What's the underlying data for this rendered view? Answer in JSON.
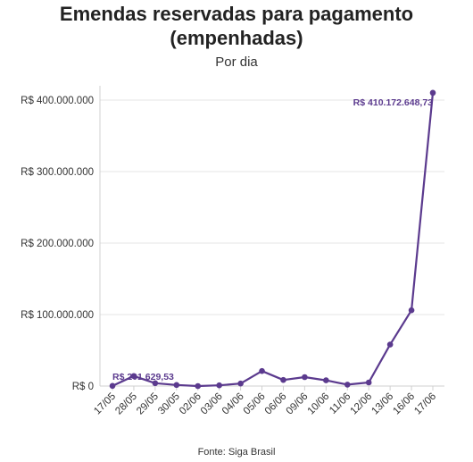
{
  "title_line1": "Emendas reservadas para pagamento",
  "title_line2": "(empenhadas)",
  "subtitle": "Por dia",
  "source": "Fonte: Siga Brasil",
  "colors": {
    "series": "#5b3a8e",
    "grid": "#e6e6e6",
    "axis": "#d0d0d0",
    "text": "#333333"
  },
  "chart_data": {
    "type": "line",
    "title": "Emendas reservadas para pagamento (empenhadas)",
    "subtitle": "Por dia",
    "xlabel": "",
    "ylabel": "",
    "categories": [
      "17/05",
      "28/05",
      "29/05",
      "30/05",
      "02/06",
      "03/06",
      "04/06",
      "05/06",
      "06/06",
      "09/06",
      "10/06",
      "11/06",
      "12/06",
      "13/06",
      "16/06",
      "17/06"
    ],
    "series": [
      {
        "values": [
          201629.53,
          14000000,
          4000000,
          1500000,
          0,
          1000000,
          3500000,
          21000000,
          8500000,
          12500000,
          8000000,
          2000000,
          5000000,
          58000000,
          106000000,
          410172648.73
        ]
      }
    ],
    "ylim": [
      0,
      420000000
    ],
    "yticks": [
      0,
      100000000,
      200000000,
      300000000,
      400000000
    ],
    "ytick_labels": [
      "R$ 0",
      "R$ 100.000.000",
      "R$ 200.000.000",
      "R$ 300.000.000",
      "R$ 400.000.000"
    ],
    "annotations": [
      {
        "index": 0,
        "text": "R$ 201.629,53"
      },
      {
        "index": 15,
        "text": "R$ 410.172.648,73"
      }
    ],
    "grid": true,
    "legend": "none"
  }
}
